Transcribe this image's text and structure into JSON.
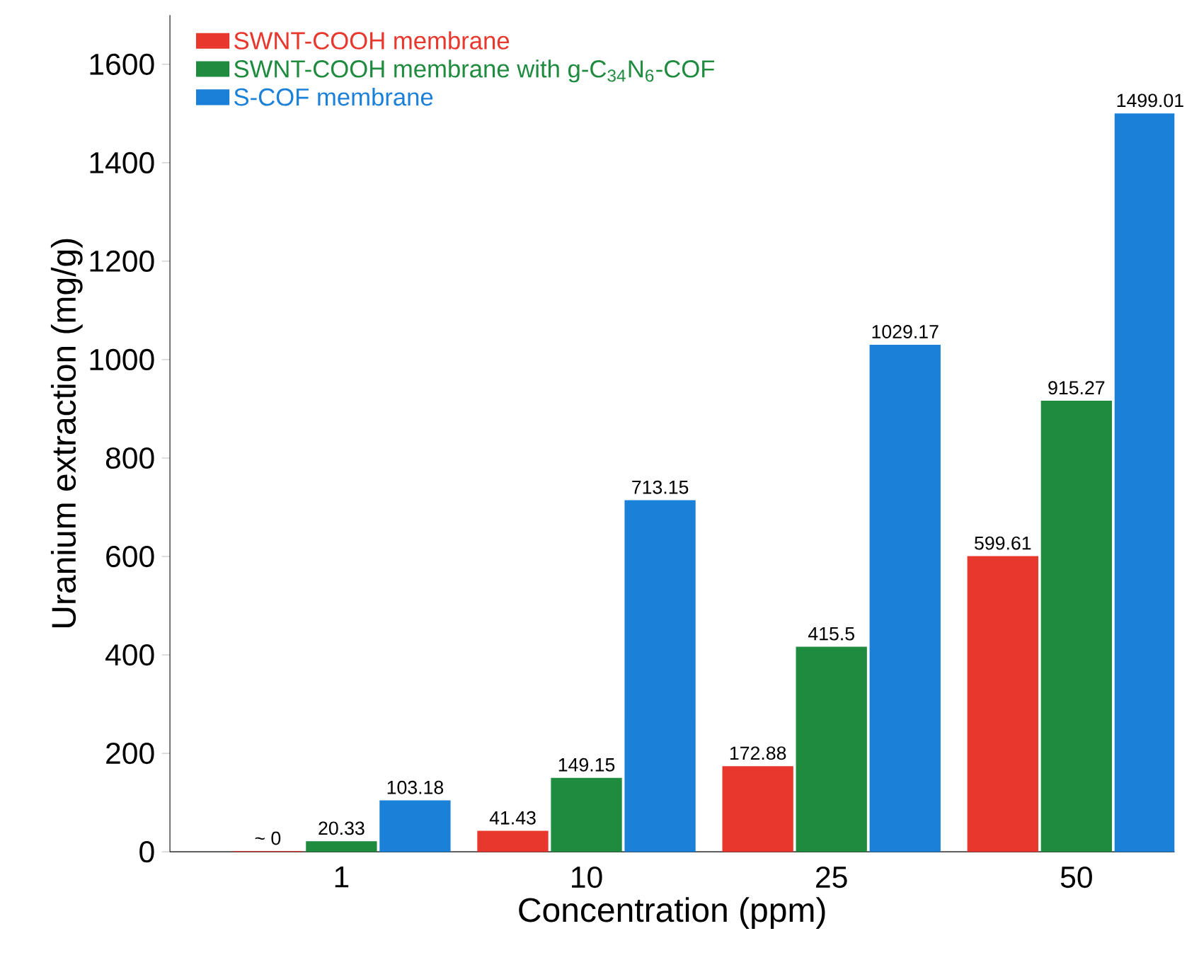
{
  "chart_data": {
    "type": "bar",
    "xlabel": "Concentration (ppm)",
    "ylabel": "Uranium extraction (mg/g)",
    "categories": [
      "1",
      "10",
      "25",
      "50"
    ],
    "series": [
      {
        "name": "SWNT-COOH membrane",
        "color": "#e8372c",
        "values": [
          0,
          41.43,
          172.88,
          599.61
        ],
        "value_labels": [
          "~ 0",
          "41.43",
          "172.88",
          "599.61"
        ]
      },
      {
        "name": "SWNT-COOH membrane with g-C$_{34}$N$_{6}$-COF",
        "color": "#1e8b3e",
        "values": [
          20.33,
          149.15,
          415.5,
          915.27
        ],
        "value_labels": [
          "20.33",
          "149.15",
          "415.5",
          "915.27"
        ]
      },
      {
        "name": "S-COF membrane",
        "color": "#1a80d8",
        "values": [
          103.18,
          713.15,
          1029.17,
          1499.01
        ],
        "value_labels": [
          "103.18",
          "713.15",
          "1029.17",
          "1499.01"
        ]
      }
    ],
    "ylim": [
      0,
      1700
    ],
    "yticks": [
      0,
      200,
      400,
      600,
      800,
      1000,
      1200,
      1400,
      1600
    ],
    "legend": "top left",
    "grid": false
  }
}
